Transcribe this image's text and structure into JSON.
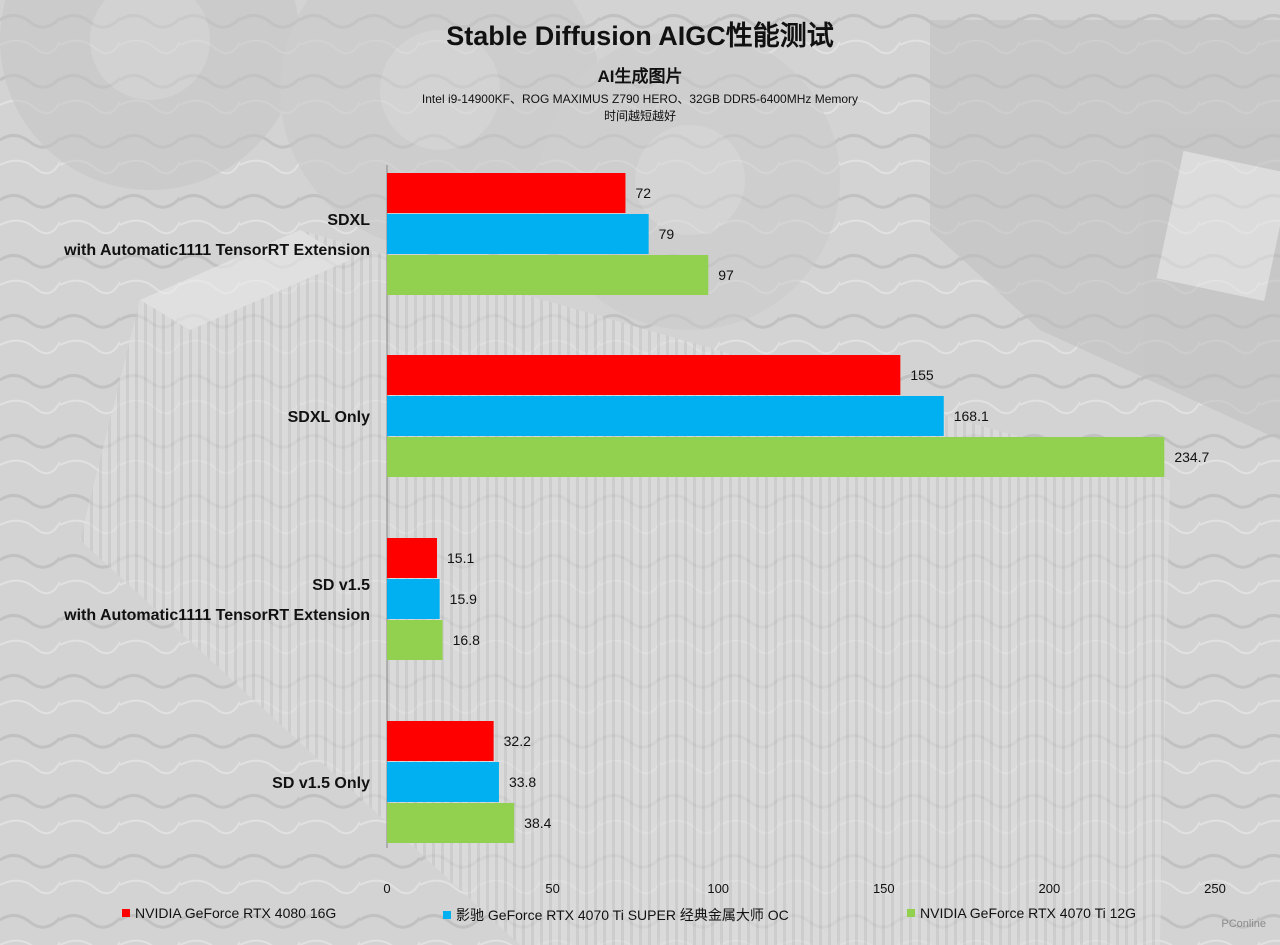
{
  "title": "Stable Diffusion AIGC性能测试",
  "subtitle": "AI生成图片",
  "notes": [
    "Intel i9-14900KF、ROG MAXIMUS Z790 HERO、32GB DDR5-6400MHz Memory",
    "时间越短越好"
  ],
  "watermark": "PConline",
  "chart_data": {
    "type": "bar",
    "orientation": "horizontal",
    "categories": [
      [
        "SDXL",
        "with Automatic1111 TensorRT Extension"
      ],
      [
        "SDXL Only"
      ],
      [
        "SD v1.5",
        "with Automatic1111 TensorRT Extension"
      ],
      [
        "SD v1.5 Only"
      ]
    ],
    "series": [
      {
        "name": "NVIDIA GeForce RTX 4080 16G",
        "color": "#ff0000",
        "values": [
          72,
          155,
          15.1,
          32.2
        ]
      },
      {
        "name": "影驰 GeForce RTX 4070 Ti SUPER 经典金属大师 OC",
        "color": "#00b0f0",
        "values": [
          79,
          168.1,
          15.9,
          33.8
        ]
      },
      {
        "name": "NVIDIA GeForce RTX 4070 Ti 12G",
        "color": "#92d050",
        "values": [
          97,
          234.7,
          16.8,
          38.4
        ]
      }
    ],
    "value_labels": [
      [
        "72",
        "155",
        "15.1",
        "32.2"
      ],
      [
        "79",
        "168.1",
        "15.9",
        "33.8"
      ],
      [
        "97",
        "234.7",
        "16.8",
        "38.4"
      ]
    ],
    "xlim": [
      0,
      250
    ],
    "xticks": [
      0,
      50,
      100,
      150,
      200,
      250
    ],
    "xtick_labels": [
      "0",
      "50",
      "100",
      "150",
      "200",
      "250"
    ],
    "grid": false,
    "legend_position": "bottom",
    "xlabel": "",
    "ylabel": ""
  }
}
